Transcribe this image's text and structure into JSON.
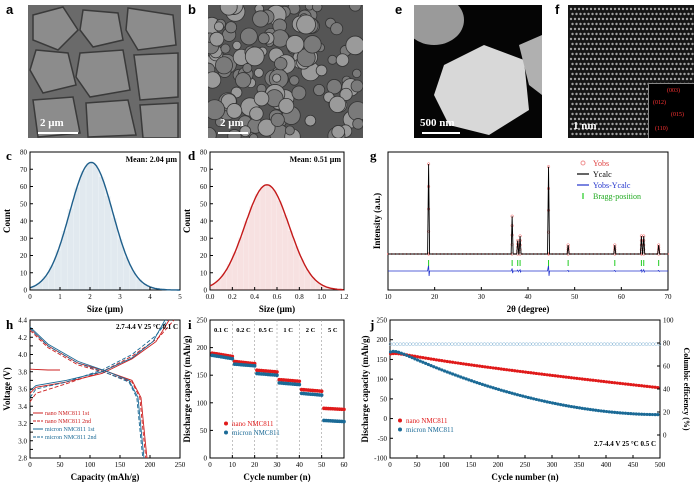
{
  "figure": {
    "panel_labels": {
      "a": "a",
      "b": "b",
      "c": "c",
      "d": "d",
      "e": "e",
      "f": "f",
      "g": "g",
      "h": "h",
      "i": "i",
      "j": "j"
    },
    "scale_a": "2 μm",
    "scale_b": "2 μm",
    "scale_e": "500 nm",
    "scale_f": "1 nm",
    "fft_labels": [
      "(003)",
      "(012)",
      "(015)",
      "(110)"
    ]
  },
  "chart_data": [
    {
      "id": "c",
      "type": "area",
      "title": "Mean: 2.04 μm",
      "xlabel": "Size (μm)",
      "ylabel": "Count",
      "xlim": [
        0,
        5
      ],
      "ylim": [
        0,
        80
      ],
      "xticks": [
        "0",
        "1",
        "2",
        "3",
        "4",
        "5"
      ],
      "yticks": [
        "0",
        "10",
        "20",
        "30",
        "40",
        "50",
        "60",
        "70",
        "80"
      ],
      "gaussian": {
        "mean": 2.04,
        "sigma": 0.72,
        "peak": 74
      },
      "color": "#1f5f8b"
    },
    {
      "id": "d",
      "type": "area",
      "title": "Mean: 0.51 μm",
      "xlabel": "Size (μm)",
      "ylabel": "Count",
      "xlim": [
        0.0,
        1.2
      ],
      "ylim": [
        0,
        80
      ],
      "xticks": [
        "0.0",
        "0.2",
        "0.4",
        "0.6",
        "0.8",
        "1.0",
        "1.2"
      ],
      "yticks": [
        "0",
        "10",
        "20",
        "30",
        "40",
        "50",
        "60",
        "70",
        "80"
      ],
      "gaussian": {
        "mean": 0.51,
        "sigma": 0.2,
        "peak": 61
      },
      "color": "#c41a1a"
    },
    {
      "id": "g",
      "type": "line",
      "xlabel": "2θ (degree)",
      "ylabel": "Intensity (a.u.)",
      "xlim": [
        10,
        70
      ],
      "xticks": [
        "10",
        "20",
        "30",
        "40",
        "50",
        "60",
        "70"
      ],
      "legend": [
        "Yobs",
        "Ycalc",
        "Yobs-Ycalc",
        "Bragg-position"
      ],
      "peaks": [
        {
          "x": 18.7,
          "h": 1.0
        },
        {
          "x": 36.6,
          "h": 0.42
        },
        {
          "x": 37.8,
          "h": 0.15
        },
        {
          "x": 38.3,
          "h": 0.2
        },
        {
          "x": 44.4,
          "h": 0.97
        },
        {
          "x": 48.6,
          "h": 0.1
        },
        {
          "x": 58.6,
          "h": 0.1
        },
        {
          "x": 64.3,
          "h": 0.2
        },
        {
          "x": 64.8,
          "h": 0.2
        },
        {
          "x": 68.0,
          "h": 0.1
        }
      ],
      "bragg": [
        18.7,
        36.6,
        37.8,
        38.3,
        44.4,
        48.6,
        58.6,
        64.3,
        64.8,
        68.0
      ]
    },
    {
      "id": "h",
      "type": "line",
      "xlabel": "Capacity (mAh/g)",
      "ylabel": "Voltage (V)",
      "xlim": [
        0,
        250
      ],
      "ylim": [
        2.8,
        4.4
      ],
      "xticks": [
        "0",
        "50",
        "100",
        "150",
        "200",
        "250"
      ],
      "yticks": [
        "2.8",
        "2.9",
        "3.0",
        "3.1",
        "3.2",
        "3.3",
        "3.4",
        "3.5",
        "3.6",
        "3.7",
        "3.8",
        "3.9",
        "4.0",
        "4.1",
        "4.2",
        "4.3",
        "4.4"
      ],
      "annotation": "2.7-4.4 V 25 °C 0.1 C",
      "legend": [
        "nano NMC811 1st",
        "nano NMC811 2nd",
        "micron NMC811 1st",
        "micron NMC811 2nd"
      ]
    },
    {
      "id": "i",
      "type": "scatter",
      "xlabel": "Cycle number (n)",
      "ylabel": "Discharge capacity (mAh/g)",
      "xlim": [
        0,
        60
      ],
      "ylim": [
        0,
        250
      ],
      "xticks": [
        "0",
        "10",
        "20",
        "30",
        "40",
        "50",
        "60"
      ],
      "yticks": [
        "0",
        "50",
        "100",
        "150",
        "200",
        "250"
      ],
      "rate_labels": [
        "0.1 C",
        "0.2 C",
        "0.5 C",
        "1 C",
        "2 C",
        "5 C"
      ],
      "series": [
        {
          "name": "nano NMC811",
          "color": "#e01a1a",
          "segments": [
            [
              190,
              184
            ],
            [
              175,
              171
            ],
            [
              159,
              156
            ],
            [
              142,
              139
            ],
            [
              124,
              121
            ],
            [
              90,
              88
            ]
          ]
        },
        {
          "name": "micron NMC811",
          "color": "#1b6a96",
          "segments": [
            [
              186,
              180
            ],
            [
              170,
              167
            ],
            [
              153,
              150
            ],
            [
              136,
              133
            ],
            [
              117,
              114
            ],
            [
              68,
              66
            ]
          ]
        }
      ]
    },
    {
      "id": "j",
      "type": "scatter",
      "xlabel": "Cycle number (n)",
      "ylabel": "Discharge capacity (mAh/g)",
      "ylabel2": "Columbic efficiency (%)",
      "xlim": [
        0,
        500
      ],
      "ylim": [
        -100,
        250
      ],
      "ylim2": [
        0,
        120
      ],
      "xticks": [
        "0",
        "50",
        "100",
        "150",
        "200",
        "250",
        "300",
        "350",
        "400",
        "450",
        "500"
      ],
      "yticks": [
        "-100",
        "-50",
        "0",
        "50",
        "100",
        "150",
        "200",
        "250"
      ],
      "yticks2": [
        "0",
        "20",
        "40",
        "60",
        "80",
        "100"
      ],
      "annotation": "2.7-4.4 V 25 °C 0.5 C",
      "series": [
        {
          "name": "nano NMC811",
          "color": "#e01a1a",
          "start": 172,
          "end": 78
        },
        {
          "name": "micron NMC811",
          "color": "#1b6a96",
          "start": 180,
          "end": 10
        }
      ],
      "efficiency": 99
    }
  ]
}
